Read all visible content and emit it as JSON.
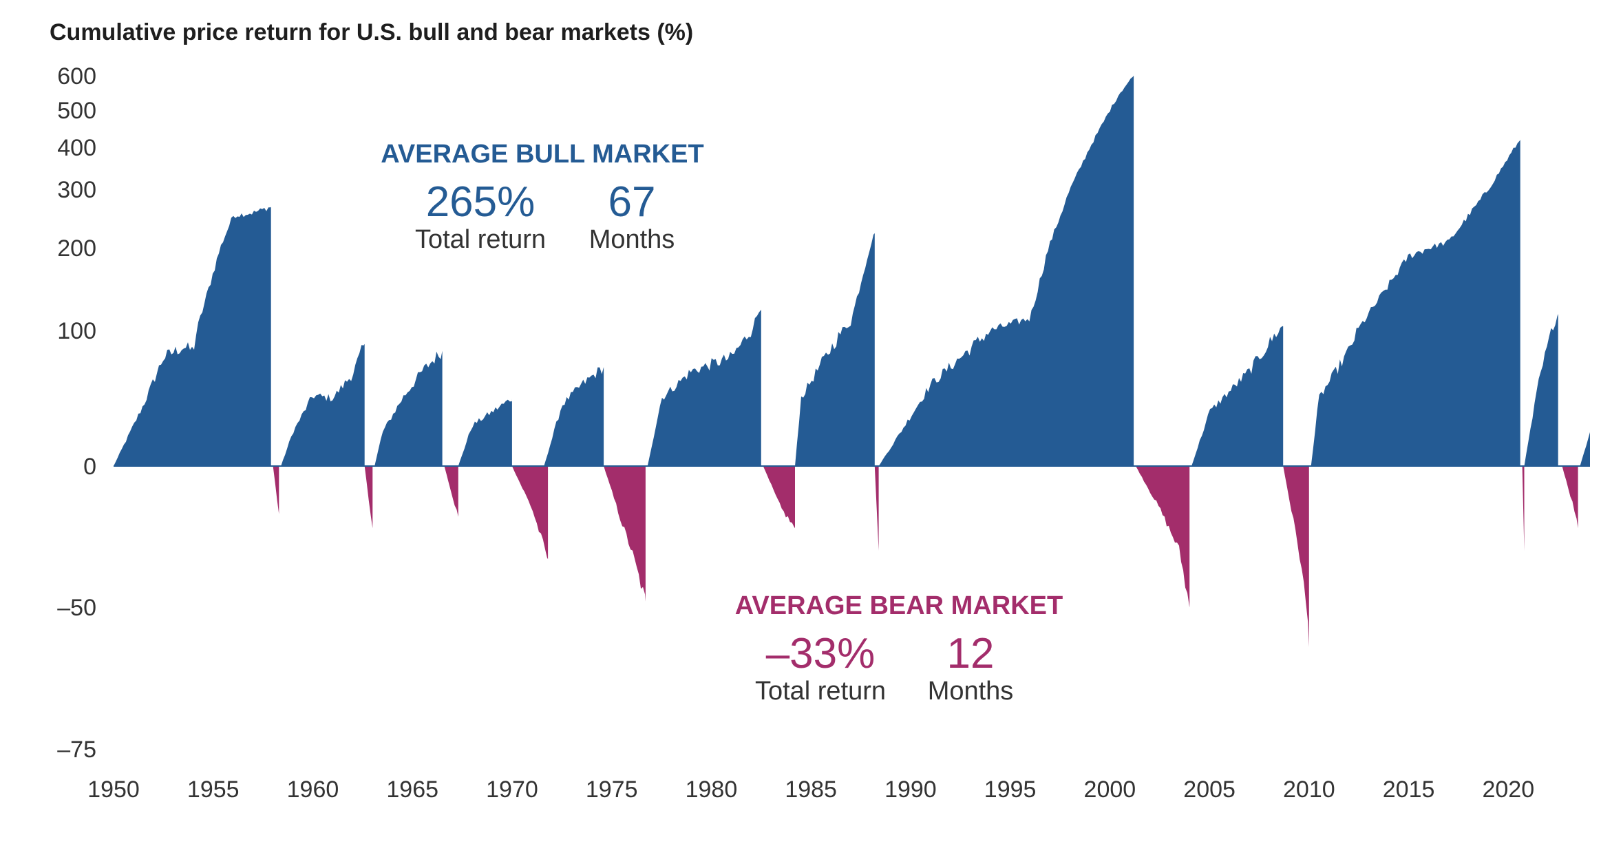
{
  "colors": {
    "bull": "#245b94",
    "bear": "#a32d6b",
    "text": "#333333"
  },
  "chart_data": {
    "type": "area",
    "title": "Cumulative price return for U.S. bull and bear markets (%)",
    "xlabel": "",
    "ylabel": "",
    "xlim": [
      1950,
      2024.1
    ],
    "yscale": "symmetric-log",
    "y_ticks": [
      600,
      500,
      400,
      300,
      200,
      100,
      0,
      -50,
      -75
    ],
    "y_tick_labels": [
      "600",
      "500",
      "400",
      "300",
      "200",
      "100",
      "0",
      "–50",
      "–75"
    ],
    "x_ticks": [
      1950,
      1955,
      1960,
      1965,
      1970,
      1975,
      1980,
      1985,
      1990,
      1995,
      2000,
      2005,
      2010,
      2015,
      2020
    ],
    "x_tick_labels": [
      "1950",
      "1955",
      "1960",
      "1965",
      "1970",
      "1975",
      "1980",
      "1985",
      "1990",
      "1995",
      "2000",
      "2005",
      "2010",
      "2015",
      "2020"
    ],
    "grid": false,
    "series": [
      {
        "name": "Bull market",
        "kind": "bull",
        "points": [
          [
            1950,
            0
          ],
          [
            1950.5,
            15
          ],
          [
            1951.5,
            45
          ],
          [
            1952.5,
            80
          ],
          [
            1953.5,
            88
          ],
          [
            1954,
            85
          ],
          [
            1955,
            170
          ],
          [
            1956,
            255
          ],
          [
            1957,
            260
          ],
          [
            1957.9,
            270
          ]
        ]
      },
      {
        "name": "Bear market",
        "kind": "bear",
        "points": [
          [
            1958,
            0
          ],
          [
            1958.3,
            -17
          ]
        ]
      },
      {
        "name": "Bull market",
        "kind": "bull",
        "points": [
          [
            1958.4,
            0
          ],
          [
            1959,
            25
          ],
          [
            1960,
            52
          ],
          [
            1961,
            50
          ],
          [
            1962,
            68
          ],
          [
            1962.6,
            90
          ]
        ]
      },
      {
        "name": "Bear market",
        "kind": "bear",
        "points": [
          [
            1962.6,
            0
          ],
          [
            1963,
            -22
          ]
        ]
      },
      {
        "name": "Bull market",
        "kind": "bull",
        "points": [
          [
            1963.1,
            0
          ],
          [
            1963.5,
            25
          ],
          [
            1964.5,
            50
          ],
          [
            1965.5,
            70
          ],
          [
            1966.5,
            85
          ]
        ]
      },
      {
        "name": "Bear market",
        "kind": "bear",
        "points": [
          [
            1966.6,
            0
          ],
          [
            1967.3,
            -18
          ]
        ]
      },
      {
        "name": "Bull market",
        "kind": "bull",
        "points": [
          [
            1967.3,
            0
          ],
          [
            1968,
            30
          ],
          [
            1969,
            40
          ],
          [
            1970,
            50
          ]
        ]
      },
      {
        "name": "Bear market",
        "kind": "bear",
        "points": [
          [
            1970,
            0
          ],
          [
            1971,
            -15
          ],
          [
            1971.8,
            -33
          ]
        ]
      },
      {
        "name": "Bull market",
        "kind": "bull",
        "points": [
          [
            1971.6,
            0
          ],
          [
            1972.5,
            45
          ],
          [
            1973.5,
            60
          ],
          [
            1974.6,
            73
          ]
        ]
      },
      {
        "name": "Bear market",
        "kind": "bear",
        "points": [
          [
            1974.6,
            0
          ],
          [
            1975.5,
            -20
          ],
          [
            1976,
            -30
          ],
          [
            1976.7,
            -48
          ]
        ]
      },
      {
        "name": "Bull market",
        "kind": "bull",
        "points": [
          [
            1976.8,
            0
          ],
          [
            1977.5,
            50
          ],
          [
            1979,
            70
          ],
          [
            1981,
            80
          ],
          [
            1982,
            100
          ],
          [
            1982.5,
            130
          ]
        ]
      },
      {
        "name": "Bear market",
        "kind": "bear",
        "points": [
          [
            1982.6,
            0
          ],
          [
            1983.5,
            -15
          ],
          [
            1984.2,
            -22
          ]
        ]
      },
      {
        "name": "Bull market",
        "kind": "bull",
        "points": [
          [
            1984.2,
            0
          ],
          [
            1984.5,
            50
          ],
          [
            1985.5,
            75
          ],
          [
            1987,
            110
          ],
          [
            1988.2,
            225
          ]
        ]
      },
      {
        "name": "Bear market",
        "kind": "bear",
        "points": [
          [
            1988.2,
            0
          ],
          [
            1988.4,
            -30
          ]
        ]
      },
      {
        "name": "Bull market",
        "kind": "bull",
        "points": [
          [
            1988.4,
            0
          ],
          [
            1989.5,
            25
          ],
          [
            1991,
            60
          ],
          [
            1994,
            100
          ],
          [
            1996,
            115
          ],
          [
            1998,
            300
          ],
          [
            2000.5,
            550
          ],
          [
            2001.2,
            600
          ]
        ]
      },
      {
        "name": "Bear market",
        "kind": "bear",
        "points": [
          [
            2001.3,
            0
          ],
          [
            2002.5,
            -15
          ],
          [
            2003.5,
            -30
          ],
          [
            2004,
            -50
          ]
        ]
      },
      {
        "name": "Bull market",
        "kind": "bull",
        "points": [
          [
            2004.1,
            0
          ],
          [
            2005,
            40
          ],
          [
            2007,
            70
          ],
          [
            2008.7,
            105
          ]
        ]
      },
      {
        "name": "Bear market",
        "kind": "bear",
        "points": [
          [
            2008.7,
            0
          ],
          [
            2009.5,
            -30
          ],
          [
            2010,
            -57
          ]
        ]
      },
      {
        "name": "Bull market",
        "kind": "bull",
        "points": [
          [
            2010.1,
            0
          ],
          [
            2010.5,
            50
          ],
          [
            2012,
            85
          ],
          [
            2015,
            190
          ],
          [
            2017,
            210
          ],
          [
            2019,
            300
          ],
          [
            2020.6,
            420
          ]
        ]
      },
      {
        "name": "Bear market",
        "kind": "bear",
        "points": [
          [
            2020.7,
            0
          ],
          [
            2020.8,
            -30
          ]
        ]
      },
      {
        "name": "Bull market",
        "kind": "bull",
        "points": [
          [
            2020.8,
            0
          ],
          [
            2021.5,
            60
          ],
          [
            2022.5,
            120
          ]
        ]
      },
      {
        "name": "Bear market",
        "kind": "bear",
        "points": [
          [
            2022.7,
            0
          ],
          [
            2023.3,
            -15
          ],
          [
            2023.5,
            -22
          ]
        ]
      },
      {
        "name": "Bull market",
        "kind": "bull",
        "points": [
          [
            2023.6,
            0
          ],
          [
            2024.1,
            25
          ]
        ]
      }
    ],
    "annotations": {
      "bull": {
        "heading": "AVERAGE BULL MARKET",
        "return_value": "265%",
        "return_label": "Total return",
        "months_value": "67",
        "months_label": "Months"
      },
      "bear": {
        "heading": "AVERAGE BEAR MARKET",
        "return_value": "–33%",
        "return_label": "Total return",
        "months_value": "12",
        "months_label": "Months"
      }
    }
  }
}
